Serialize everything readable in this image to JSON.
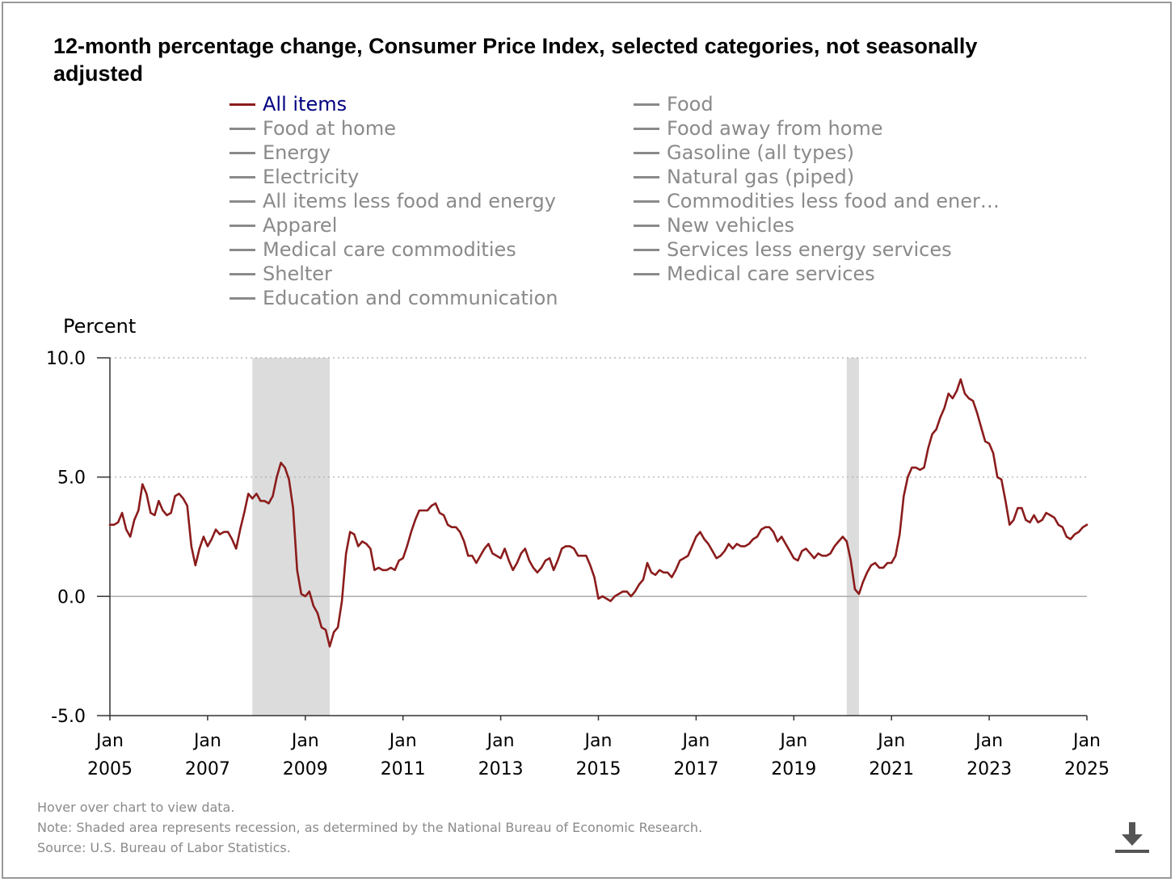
{
  "title": "12-month percentage change, Consumer Price Index, selected categories, not seasonally adjusted",
  "ylabel": "Percent",
  "legend": [
    {
      "label": "All items",
      "active": true
    },
    {
      "label": "Food",
      "active": false
    },
    {
      "label": "Food at home",
      "active": false
    },
    {
      "label": "Food away from home",
      "active": false
    },
    {
      "label": "Energy",
      "active": false
    },
    {
      "label": "Gasoline (all types)",
      "active": false
    },
    {
      "label": "Electricity",
      "active": false
    },
    {
      "label": "Natural gas (piped)",
      "active": false
    },
    {
      "label": "All items less food and energy",
      "active": false
    },
    {
      "label": "Commodities less food and ener…",
      "active": false
    },
    {
      "label": "Apparel",
      "active": false
    },
    {
      "label": "New vehicles",
      "active": false
    },
    {
      "label": "Medical care commodities",
      "active": false
    },
    {
      "label": "Services less energy services",
      "active": false
    },
    {
      "label": "Shelter",
      "active": false
    },
    {
      "label": "Medical care services",
      "active": false
    },
    {
      "label": "Education and communication",
      "active": false
    }
  ],
  "footnotes": {
    "hover": "Hover over chart to view data.",
    "note": "Note: Shaded area represents recession, as determined by the National Bureau of Economic Research.",
    "source": "Source: U.S. Bureau of Labor Statistics."
  },
  "icons": {
    "download": "download-icon"
  },
  "colors": {
    "all_items": "#8b1c1c",
    "inactive": "#8a8a8a",
    "active_label": "#000080",
    "recession": "#dcdcdc"
  },
  "chart_data": {
    "type": "line",
    "ylabel": "Percent",
    "ylim": [
      -5,
      10
    ],
    "yticks": [
      "10.0",
      "5.0",
      "0.0",
      "-5.0"
    ],
    "ytick_values": [
      10,
      5,
      0,
      -5
    ],
    "xlim": [
      "2005-01",
      "2025-01"
    ],
    "xticks": [
      {
        "month": "Jan",
        "year": "2005",
        "date": "2005-01"
      },
      {
        "month": "Jan",
        "year": "2007",
        "date": "2007-01"
      },
      {
        "month": "Jan",
        "year": "2009",
        "date": "2009-01"
      },
      {
        "month": "Jan",
        "year": "2011",
        "date": "2011-01"
      },
      {
        "month": "Jan",
        "year": "2013",
        "date": "2013-01"
      },
      {
        "month": "Jan",
        "year": "2015",
        "date": "2015-01"
      },
      {
        "month": "Jan",
        "year": "2017",
        "date": "2017-01"
      },
      {
        "month": "Jan",
        "year": "2019",
        "date": "2019-01"
      },
      {
        "month": "Jan",
        "year": "2021",
        "date": "2021-01"
      },
      {
        "month": "Jan",
        "year": "2023",
        "date": "2023-01"
      },
      {
        "month": "Jan",
        "year": "2025",
        "date": "2025-01"
      }
    ],
    "grid": true,
    "recessions": [
      {
        "start": "2007-12",
        "end": "2009-06"
      },
      {
        "start": "2020-02",
        "end": "2020-04"
      }
    ],
    "series": [
      {
        "name": "All items",
        "color": "#8b1c1c",
        "start": "2005-01",
        "values": [
          3.0,
          3.0,
          3.1,
          3.5,
          2.8,
          2.5,
          3.2,
          3.6,
          4.7,
          4.3,
          3.5,
          3.4,
          4.0,
          3.6,
          3.4,
          3.5,
          4.2,
          4.3,
          4.1,
          3.8,
          2.1,
          1.3,
          2.0,
          2.5,
          2.1,
          2.4,
          2.8,
          2.6,
          2.7,
          2.7,
          2.4,
          2.0,
          2.8,
          3.5,
          4.3,
          4.1,
          4.3,
          4.0,
          4.0,
          3.9,
          4.2,
          5.0,
          5.6,
          5.4,
          4.9,
          3.7,
          1.1,
          0.1,
          0.0,
          0.2,
          -0.4,
          -0.7,
          -1.3,
          -1.4,
          -2.1,
          -1.5,
          -1.3,
          -0.2,
          1.8,
          2.7,
          2.6,
          2.1,
          2.3,
          2.2,
          2.0,
          1.1,
          1.2,
          1.1,
          1.1,
          1.2,
          1.1,
          1.5,
          1.6,
          2.1,
          2.7,
          3.2,
          3.6,
          3.6,
          3.6,
          3.8,
          3.9,
          3.5,
          3.4,
          3.0,
          2.9,
          2.9,
          2.7,
          2.3,
          1.7,
          1.7,
          1.4,
          1.7,
          2.0,
          2.2,
          1.8,
          1.7,
          1.6,
          2.0,
          1.5,
          1.1,
          1.4,
          1.8,
          2.0,
          1.5,
          1.2,
          1.0,
          1.2,
          1.5,
          1.6,
          1.1,
          1.5,
          2.0,
          2.1,
          2.1,
          2.0,
          1.7,
          1.7,
          1.7,
          1.3,
          0.8,
          -0.1,
          0.0,
          -0.1,
          -0.2,
          0.0,
          0.1,
          0.2,
          0.2,
          0.0,
          0.2,
          0.5,
          0.7,
          1.4,
          1.0,
          0.9,
          1.1,
          1.0,
          1.0,
          0.8,
          1.1,
          1.5,
          1.6,
          1.7,
          2.1,
          2.5,
          2.7,
          2.4,
          2.2,
          1.9,
          1.6,
          1.7,
          1.9,
          2.2,
          2.0,
          2.2,
          2.1,
          2.1,
          2.2,
          2.4,
          2.5,
          2.8,
          2.9,
          2.9,
          2.7,
          2.3,
          2.5,
          2.2,
          1.9,
          1.6,
          1.5,
          1.9,
          2.0,
          1.8,
          1.6,
          1.8,
          1.7,
          1.7,
          1.8,
          2.1,
          2.3,
          2.5,
          2.3,
          1.5,
          0.3,
          0.1,
          0.6,
          1.0,
          1.3,
          1.4,
          1.2,
          1.2,
          1.4,
          1.4,
          1.7,
          2.6,
          4.2,
          5.0,
          5.4,
          5.4,
          5.3,
          5.4,
          6.2,
          6.8,
          7.0,
          7.5,
          7.9,
          8.5,
          8.3,
          8.6,
          9.1,
          8.5,
          8.3,
          8.2,
          7.7,
          7.1,
          6.5,
          6.4,
          6.0,
          5.0,
          4.9,
          4.0,
          3.0,
          3.2,
          3.7,
          3.7,
          3.2,
          3.1,
          3.4,
          3.1,
          3.2,
          3.5,
          3.4,
          3.3,
          3.0,
          2.9,
          2.5,
          2.4,
          2.6,
          2.7,
          2.9,
          3.0
        ]
      }
    ]
  }
}
